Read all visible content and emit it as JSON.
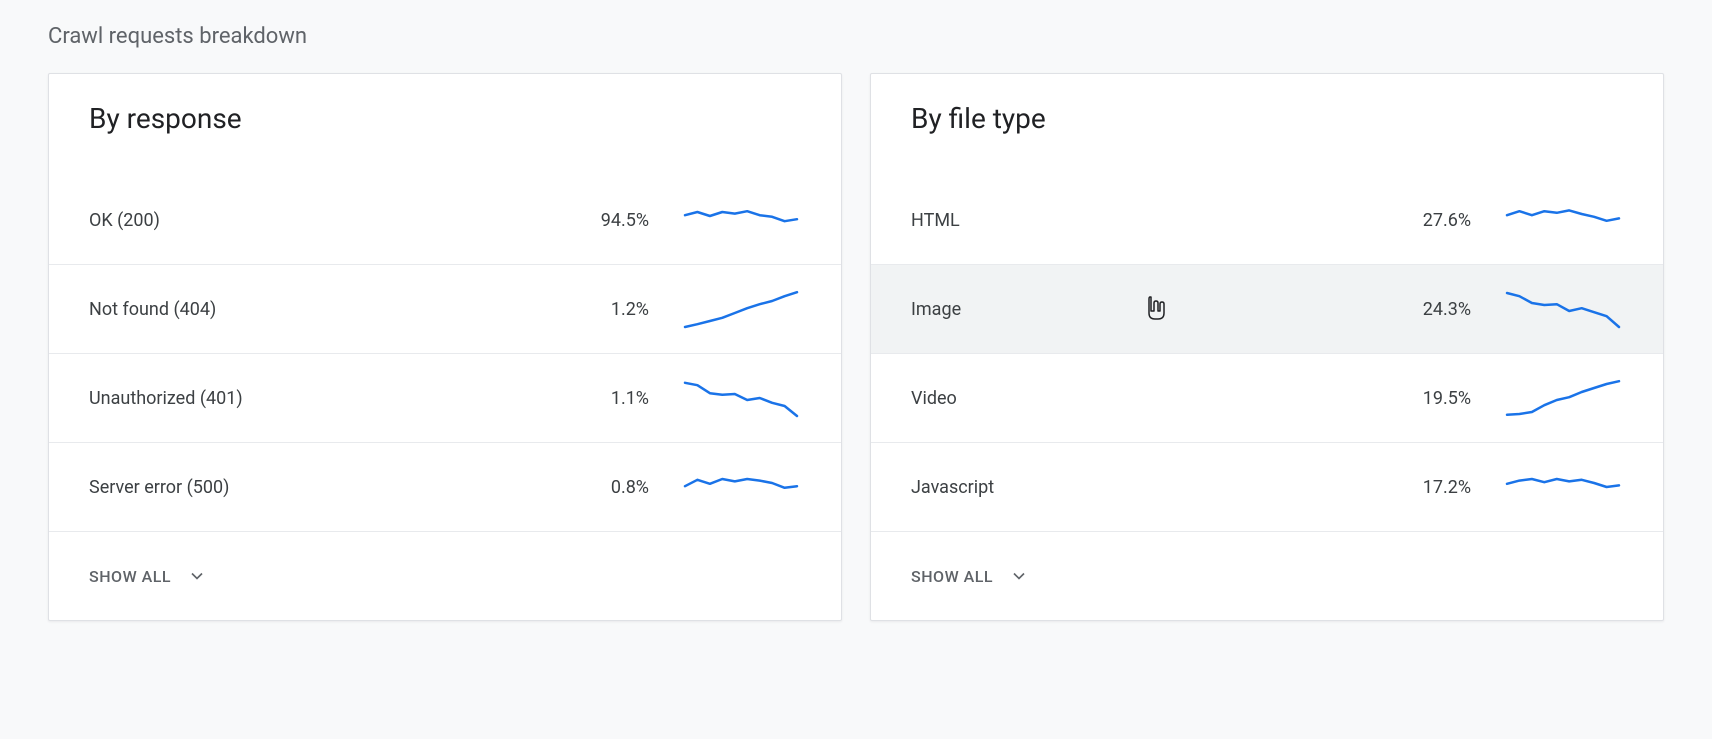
{
  "page_background": "#f8f9fa",
  "card_background": "#ffffff",
  "card_border_color": "#dfe1e5",
  "row_divider_color": "#e8eaed",
  "hover_row_background": "#f1f3f4",
  "text_primary": "#202124",
  "text_secondary": "#5f6368",
  "spark_color": "#1a73e8",
  "spark_stroke_width": 2.5,
  "section_title": "Crawl requests breakdown",
  "section_title_fontsize": 22,
  "card_title_fontsize": 28,
  "row_fontsize": 18,
  "footer_fontsize": 16,
  "show_all_label": "SHOW ALL",
  "cards": [
    {
      "id": "by-response",
      "title": "By response",
      "rows": [
        {
          "label": "OK (200)",
          "value": "94.5%",
          "hover": false,
          "spark": [
            0.38,
            0.3,
            0.4,
            0.3,
            0.34,
            0.28,
            0.38,
            0.42,
            0.53,
            0.48
          ]
        },
        {
          "label": "Not found (404)",
          "value": "1.2%",
          "hover": false,
          "spark": [
            0.95,
            0.88,
            0.8,
            0.72,
            0.6,
            0.48,
            0.38,
            0.3,
            0.18,
            0.08
          ]
        },
        {
          "label": "Unauthorized (401)",
          "value": "1.1%",
          "hover": false,
          "spark": [
            0.12,
            0.18,
            0.38,
            0.42,
            0.4,
            0.55,
            0.5,
            0.62,
            0.7,
            0.95
          ]
        },
        {
          "label": "Server error (500)",
          "value": "0.8%",
          "hover": false,
          "spark": [
            0.48,
            0.32,
            0.42,
            0.3,
            0.36,
            0.3,
            0.34,
            0.4,
            0.52,
            0.48
          ]
        }
      ]
    },
    {
      "id": "by-file-type",
      "title": "By file type",
      "rows": [
        {
          "label": "HTML",
          "value": "27.6%",
          "hover": false,
          "spark": [
            0.38,
            0.28,
            0.38,
            0.28,
            0.32,
            0.26,
            0.35,
            0.42,
            0.52,
            0.46
          ]
        },
        {
          "label": "Image",
          "value": "24.3%",
          "hover": true,
          "spark": [
            0.1,
            0.18,
            0.35,
            0.4,
            0.38,
            0.55,
            0.48,
            0.58,
            0.68,
            0.95
          ]
        },
        {
          "label": "Video",
          "value": "19.5%",
          "hover": false,
          "spark": [
            0.92,
            0.9,
            0.85,
            0.68,
            0.55,
            0.48,
            0.35,
            0.25,
            0.15,
            0.08
          ]
        },
        {
          "label": "Javascript",
          "value": "17.2%",
          "hover": false,
          "spark": [
            0.42,
            0.34,
            0.3,
            0.38,
            0.3,
            0.36,
            0.32,
            0.4,
            0.5,
            0.46
          ]
        }
      ]
    }
  ]
}
